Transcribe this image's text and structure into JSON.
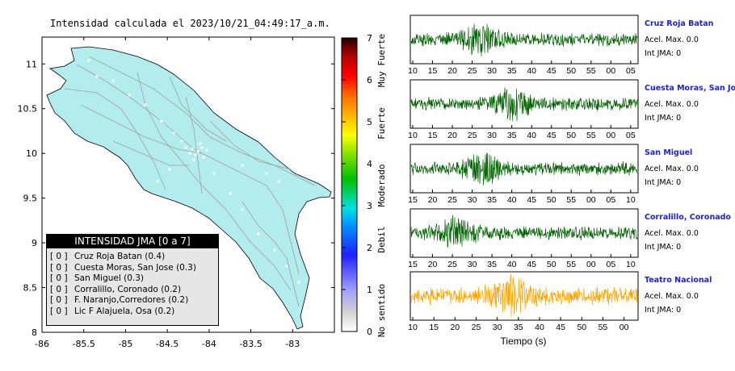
{
  "title": "Intensidad calculada el 2023/10/21_04:49:17_a.m.",
  "colors": {
    "land": "#b3ecec",
    "land_stroke": "#000000",
    "road": "#a0a0a0",
    "station": "#ffffff",
    "wave_normal": "#006400",
    "wave_highlight": "#ffa500",
    "station_label": "#1a1aff"
  },
  "map": {
    "x_ticks": [
      "-86",
      "-85.5",
      "-85",
      "-84.5",
      "-84",
      "-83.5",
      "-83"
    ],
    "y_ticks": [
      "11",
      "10.5",
      "10",
      "9.5",
      "9",
      "8.5",
      "8"
    ],
    "xlim": [
      -86,
      -82.5
    ],
    "ylim": [
      8,
      11.3
    ]
  },
  "colorbar": {
    "ticks": [
      "0",
      "1",
      "2",
      "3",
      "4",
      "5",
      "6",
      "7"
    ],
    "labels": [
      "No sentido",
      "Debil",
      "Moderado",
      "Fuerte",
      "Muy Fuerte"
    ],
    "range": [
      0,
      7
    ]
  },
  "legend": {
    "title": "INTENSIDAD JMA [0 a 7]",
    "items": [
      {
        "level": "[ 0 ]",
        "name": "Cruz Roja Batan (0.4)"
      },
      {
        "level": "[ 0 ]",
        "name": "Cuesta Moras, San Jose (0.3)"
      },
      {
        "level": "[ 0 ]",
        "name": "San Miguel (0.3)"
      },
      {
        "level": "[ 0 ]",
        "name": "Corralillo, Coronado (0.2)"
      },
      {
        "level": "[ 0 ]",
        "name": "F. Naranjo,Corredores (0.2)"
      },
      {
        "level": "[ 0 ]",
        "name": "Lic F Alajuela, Osa (0.2)"
      }
    ]
  },
  "waveforms": {
    "xlabel": "Tiempo (s)",
    "panels": [
      {
        "station": "Cruz Roja Batan",
        "accel": "Acel. Max. 0.0",
        "jma": "Int JMA: 0",
        "ticks": [
          "10",
          "15",
          "20",
          "25",
          "30",
          "35",
          "40",
          "45",
          "50",
          "55",
          "00",
          "05"
        ],
        "color": "normal",
        "burst": 0.3,
        "seed": 3
      },
      {
        "station": "Cuesta Moras, San Jose",
        "accel": "Acel. Max. 0.0",
        "jma": "Int JMA: 0",
        "ticks": [
          "10",
          "15",
          "20",
          "25",
          "30",
          "35",
          "40",
          "45",
          "50",
          "55",
          "00",
          "05"
        ],
        "color": "normal",
        "burst": 0.45,
        "seed": 7
      },
      {
        "station": "San Miguel",
        "accel": "Acel. Max. 0.0",
        "jma": "Int JMA: 0",
        "ticks": [
          "15",
          "20",
          "25",
          "30",
          "35",
          "40",
          "45",
          "50",
          "55",
          "00",
          "05",
          "10"
        ],
        "color": "normal",
        "burst": 0.32,
        "seed": 11
      },
      {
        "station": "Corralillo, Coronado",
        "accel": "Acel. Max. 0.0",
        "jma": "Int JMA: 0",
        "ticks": [
          "15",
          "20",
          "25",
          "30",
          "35",
          "40",
          "45",
          "50",
          "55",
          "00",
          "05",
          "10"
        ],
        "color": "normal",
        "burst": 0.2,
        "seed": 17
      },
      {
        "station": "Teatro Nacional",
        "accel": "Acel. Max. 0.0",
        "jma": "Int JMA: 0",
        "ticks": [
          "10",
          "15",
          "20",
          "25",
          "30",
          "35",
          "40",
          "45",
          "50",
          "55",
          "00"
        ],
        "color": "highlight",
        "burst": 0.45,
        "seed": 23
      }
    ]
  }
}
